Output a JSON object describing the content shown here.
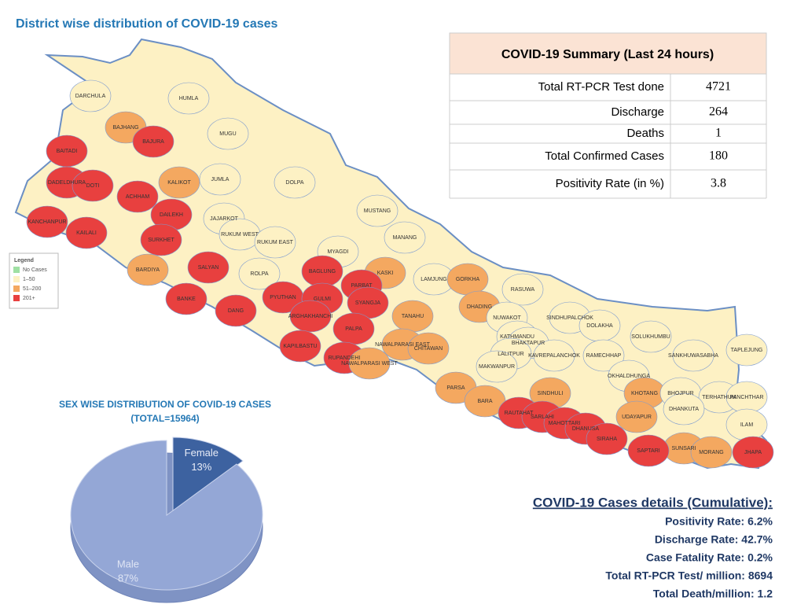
{
  "header": {
    "title": "District wise distribution of COVID-19 cases"
  },
  "legend": {
    "title": "Legend",
    "items": [
      {
        "label": "No Cases",
        "color": "#9fe0a3"
      },
      {
        "label": "1–50",
        "color": "#fdf1c4"
      },
      {
        "label": "51–200",
        "color": "#f4a860"
      },
      {
        "label": "201+",
        "color": "#e8403f"
      }
    ]
  },
  "districts": [
    {
      "name": "DARCHULA",
      "color": "#fdf1c4"
    },
    {
      "name": "HUMLA",
      "color": "#fdf1c4"
    },
    {
      "name": "BAJHANG",
      "color": "#f4a860"
    },
    {
      "name": "BAJURA",
      "color": "#e8403f"
    },
    {
      "name": "BAITADI",
      "color": "#e8403f"
    },
    {
      "name": "MUGU",
      "color": "#fdf1c4"
    },
    {
      "name": "DADELDHURA",
      "color": "#e8403f"
    },
    {
      "name": "DOTI",
      "color": "#e8403f"
    },
    {
      "name": "KALIKOT",
      "color": "#f4a860"
    },
    {
      "name": "JUMLA",
      "color": "#fdf1c4"
    },
    {
      "name": "DOLPA",
      "color": "#fdf1c4"
    },
    {
      "name": "ACHHAM",
      "color": "#e8403f"
    },
    {
      "name": "KANCHANPUR",
      "color": "#e8403f"
    },
    {
      "name": "KAILALI",
      "color": "#e8403f"
    },
    {
      "name": "DAILEKH",
      "color": "#e8403f"
    },
    {
      "name": "JAJARKOT",
      "color": "#fdf1c4"
    },
    {
      "name": "RUKUM WEST",
      "color": "#fdf1c4"
    },
    {
      "name": "RUKUM EAST",
      "color": "#fdf1c4"
    },
    {
      "name": "MUSTANG",
      "color": "#fdf1c4"
    },
    {
      "name": "MANANG",
      "color": "#fdf1c4"
    },
    {
      "name": "MYAGDI",
      "color": "#fdf1c4"
    },
    {
      "name": "SURKHET",
      "color": "#e8403f"
    },
    {
      "name": "BARDIYA",
      "color": "#f4a860"
    },
    {
      "name": "SALYAN",
      "color": "#e8403f"
    },
    {
      "name": "ROLPA",
      "color": "#fdf1c4"
    },
    {
      "name": "BAGLUNG",
      "color": "#e8403f"
    },
    {
      "name": "KASKI",
      "color": "#f4a860"
    },
    {
      "name": "LAMJUNG",
      "color": "#fdf1c4"
    },
    {
      "name": "GORKHA",
      "color": "#f4a860"
    },
    {
      "name": "PARBAT",
      "color": "#e8403f"
    },
    {
      "name": "RASUWA",
      "color": "#fdf1c4"
    },
    {
      "name": "BANKE",
      "color": "#e8403f"
    },
    {
      "name": "PYUTHAN",
      "color": "#e8403f"
    },
    {
      "name": "GULMI",
      "color": "#e8403f"
    },
    {
      "name": "SYANGJA",
      "color": "#e8403f"
    },
    {
      "name": "DANG",
      "color": "#e8403f"
    },
    {
      "name": "ARGHAKHANCHI",
      "color": "#e8403f"
    },
    {
      "name": "DHADING",
      "color": "#f4a860"
    },
    {
      "name": "NUWAKOT",
      "color": "#fdf1c4"
    },
    {
      "name": "SINDHUPALCHOK",
      "color": "#fdf1c4"
    },
    {
      "name": "DOLAKHA",
      "color": "#fdf1c4"
    },
    {
      "name": "TANAHU",
      "color": "#f4a860"
    },
    {
      "name": "PALPA",
      "color": "#e8403f"
    },
    {
      "name": "SOLUKHUMBU",
      "color": "#fdf1c4"
    },
    {
      "name": "KATHMANDU",
      "color": "#fdf1c4"
    },
    {
      "name": "BHAKTAPUR",
      "color": "#fdf1c4"
    },
    {
      "name": "NAWALPARASI EAST",
      "color": "#f4a860"
    },
    {
      "name": "CHITAWAN",
      "color": "#f4a860"
    },
    {
      "name": "KAPILBASTU",
      "color": "#e8403f"
    },
    {
      "name": "LALITPUR",
      "color": "#fdf1c4"
    },
    {
      "name": "KAVREPALANCHOK",
      "color": "#fdf1c4"
    },
    {
      "name": "RAMECHHAP",
      "color": "#fdf1c4"
    },
    {
      "name": "SANKHUWASABHA",
      "color": "#fdf1c4"
    },
    {
      "name": "TAPLEJUNG",
      "color": "#fdf1c4"
    },
    {
      "name": "RUPANDEHI",
      "color": "#e8403f"
    },
    {
      "name": "NAWALPARASI WEST",
      "color": "#f4a860"
    },
    {
      "name": "MAKWANPUR",
      "color": "#fdf1c4"
    },
    {
      "name": "OKHALDHUNGA",
      "color": "#fdf1c4"
    },
    {
      "name": "KHOTANG",
      "color": "#f4a860"
    },
    {
      "name": "BHOJPUR",
      "color": "#fdf1c4"
    },
    {
      "name": "TERHATHUM",
      "color": "#fdf1c4"
    },
    {
      "name": "PANCHTHAR",
      "color": "#fdf1c4"
    },
    {
      "name": "DHANKUTA",
      "color": "#fdf1c4"
    },
    {
      "name": "PARSA",
      "color": "#f4a860"
    },
    {
      "name": "SINDHULI",
      "color": "#f4a860"
    },
    {
      "name": "BARA",
      "color": "#f4a860"
    },
    {
      "name": "RAUTAHAT",
      "color": "#e8403f"
    },
    {
      "name": "SARLAHI",
      "color": "#e8403f"
    },
    {
      "name": "MAHOTTARI",
      "color": "#e8403f"
    },
    {
      "name": "DHANUSA",
      "color": "#e8403f"
    },
    {
      "name": "UDAYAPUR",
      "color": "#f4a860"
    },
    {
      "name": "ILAM",
      "color": "#fdf1c4"
    },
    {
      "name": "SIRAHA",
      "color": "#e8403f"
    },
    {
      "name": "SUNSARI",
      "color": "#f4a860"
    },
    {
      "name": "MORANG",
      "color": "#f4a860"
    },
    {
      "name": "JHAPA",
      "color": "#e8403f"
    },
    {
      "name": "SAPTARI",
      "color": "#e8403f"
    }
  ],
  "summary": {
    "title": "COVID-19 Summary (Last 24 hours)",
    "rows": [
      [
        "Total RT-PCR Test done",
        4721
      ],
      [
        "Discharge",
        264
      ],
      [
        "Deaths",
        1
      ],
      [
        "Total Confirmed Cases",
        180
      ],
      [
        "Positivity Rate (in %)",
        3.8
      ]
    ]
  },
  "chart_data": {
    "type": "pie",
    "title": "SEX WISE DISTRIBUTION OF COVID-19 CASES",
    "subtitle": "(TOTAL=15964)",
    "categories": [
      "Female",
      "Male"
    ],
    "values": [
      13,
      87
    ],
    "value_labels": [
      "13%",
      "87%"
    ],
    "colors": [
      "#3d62a0",
      "#94a7d6"
    ]
  },
  "cumulative": {
    "title": "COVID-19 Cases details (Cumulative):",
    "items": [
      "Positivity Rate: 6.2%",
      "Discharge Rate: 42.7%",
      "Case Fatality Rate: 0.2%",
      "Total RT-PCR Test/ million: 8694",
      "Total Death/million: 1.2"
    ]
  }
}
